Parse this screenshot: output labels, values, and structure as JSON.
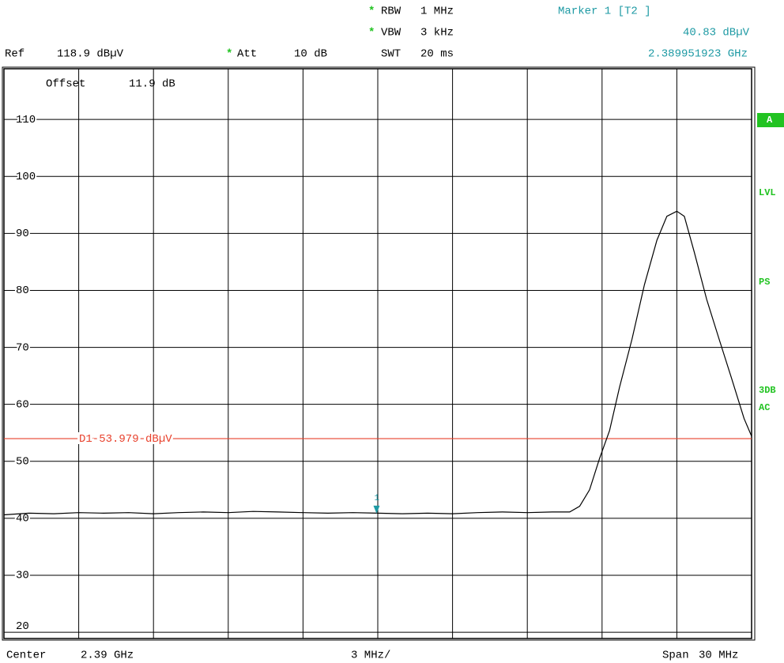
{
  "chart_data": {
    "type": "line",
    "header": {
      "rbw_star": "*",
      "rbw_label": "RBW",
      "rbw_value": "1 MHz",
      "vbw_star": "*",
      "vbw_label": "VBW",
      "vbw_value": "3 kHz",
      "swt_label": "SWT",
      "swt_value": "20 ms",
      "ref_label": "Ref",
      "ref_value": "118.9 dBµV",
      "att_star": "*",
      "att_label": "Att",
      "att_value": "10 dB",
      "offset_label": "Offset",
      "offset_value": "11.9 dB"
    },
    "marker": {
      "title": "Marker 1 [T2 ]",
      "level_label": "40.83 dBµV",
      "freq_label": "2.389951923 GHz",
      "number": "1",
      "x": 2.389951923,
      "y": 40.83,
      "color": "#1e9aa4"
    },
    "display_line": {
      "value": 53.979,
      "label": "D1 53.979 dBµV",
      "color": "#e8412c"
    },
    "footer": {
      "center_label": "Center",
      "center_value": "2.39 GHz",
      "per_div": "3 MHz/",
      "span_label": "Span",
      "span_value": "30 MHz"
    },
    "side_labels": [
      "A",
      "LVL",
      "PS",
      "3DB",
      "AC"
    ],
    "color": "#000000",
    "x": [
      2.375,
      2.376,
      2.377,
      2.378,
      2.379,
      2.38,
      2.381,
      2.382,
      2.383,
      2.384,
      2.385,
      2.386,
      2.387,
      2.388,
      2.389,
      2.39,
      2.391,
      2.392,
      2.393,
      2.394,
      2.395,
      2.396,
      2.397,
      2.3977,
      2.3981,
      2.3985,
      2.3989,
      2.3993,
      2.3997,
      2.4002,
      2.4007,
      2.4012,
      2.4016,
      2.402,
      2.4023,
      2.4027,
      2.4032,
      2.4037,
      2.4042,
      2.4047,
      2.405
    ],
    "values": [
      40.6,
      40.9,
      40.8,
      41.0,
      40.9,
      41.0,
      40.8,
      41.0,
      41.1,
      41.0,
      41.2,
      41.1,
      41.0,
      40.9,
      41.0,
      40.9,
      40.8,
      40.9,
      40.8,
      41.0,
      41.1,
      41.0,
      41.1,
      41.1,
      42.1,
      45.0,
      50.5,
      55.4,
      63.0,
      71.4,
      81.0,
      88.8,
      93.0,
      93.9,
      93.0,
      86.7,
      78.4,
      71.4,
      64.5,
      57.5,
      54.4
    ],
    "xlim": [
      2.375,
      2.405
    ],
    "xticks": [
      2.378,
      2.381,
      2.384,
      2.387,
      2.39,
      2.393,
      2.396,
      2.399,
      2.402
    ],
    "ylim": [
      18.9,
      118.9
    ],
    "yticks": [
      110,
      100,
      90,
      80,
      70,
      60,
      50,
      40,
      30,
      20
    ],
    "grid": true
  }
}
